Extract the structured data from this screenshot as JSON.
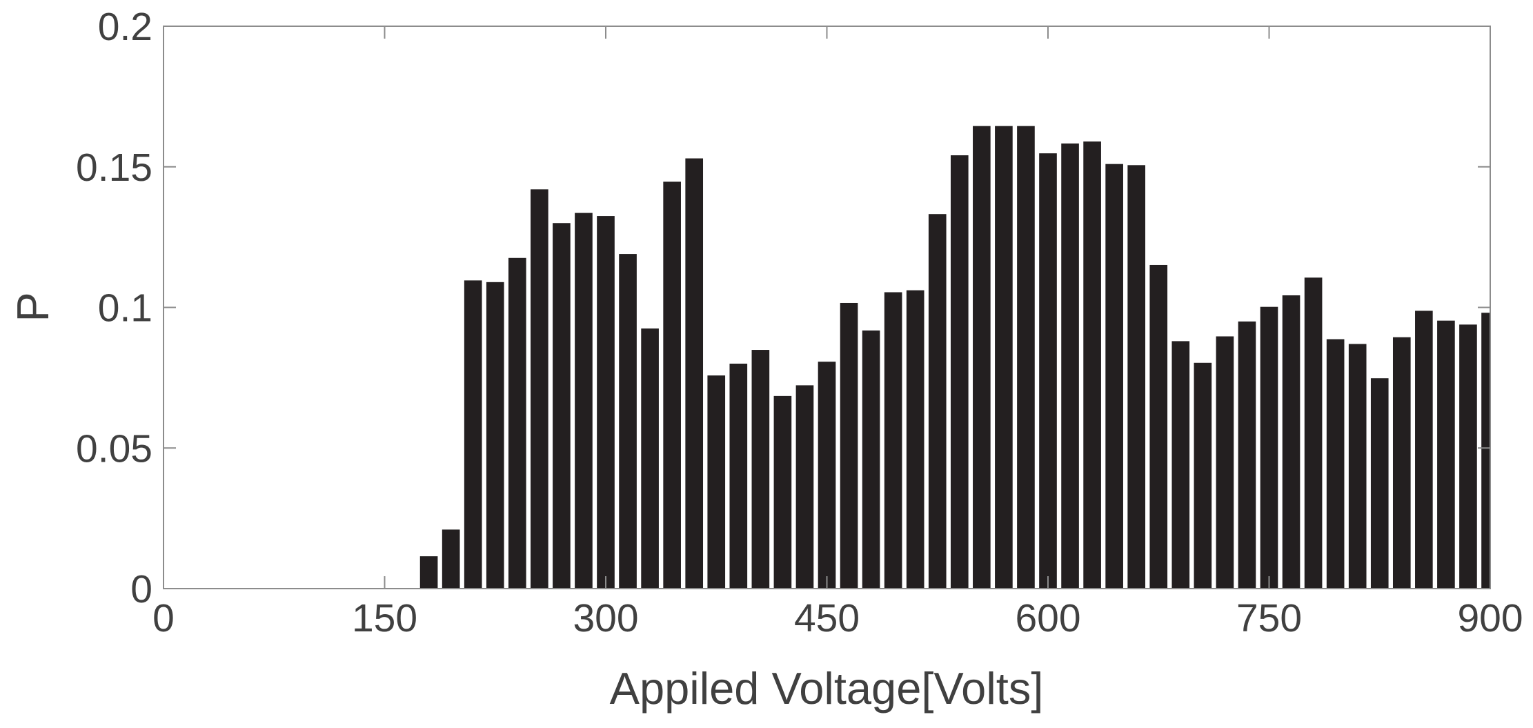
{
  "chart_data": {
    "type": "bar",
    "x_label": "Appiled Voltage[Volts]",
    "y_label": "P",
    "x": [
      180,
      195,
      210,
      225,
      240,
      255,
      270,
      285,
      300,
      315,
      330,
      345,
      360,
      375,
      390,
      405,
      420,
      435,
      450,
      465,
      480,
      495,
      510,
      525,
      540,
      555,
      570,
      585,
      600,
      615,
      630,
      645,
      660,
      675,
      690,
      705,
      720,
      735,
      750,
      765,
      780,
      795,
      810,
      825,
      840,
      855,
      870,
      885,
      900
    ],
    "values": [
      0.0115,
      0.021,
      0.1096,
      0.109,
      0.1176,
      0.142,
      0.13,
      0.1336,
      0.1325,
      0.119,
      0.0925,
      0.1447,
      0.153,
      0.0758,
      0.08,
      0.0849,
      0.0685,
      0.0723,
      0.0807,
      0.1016,
      0.0918,
      0.1054,
      0.1061,
      0.1332,
      0.1541,
      0.1645,
      0.1645,
      0.1645,
      0.1548,
      0.1583,
      0.159,
      0.151,
      0.1506,
      0.1151,
      0.088,
      0.0803,
      0.0897,
      0.095,
      0.1002,
      0.1043,
      0.1106,
      0.0887,
      0.087,
      0.0748,
      0.0894,
      0.0988,
      0.0953,
      0.0939,
      0.0981
    ],
    "color": "#231f20",
    "xlim": [
      0,
      900
    ],
    "xticks": [
      0,
      150,
      300,
      450,
      600,
      750,
      900
    ],
    "ylim": [
      0,
      0.2
    ],
    "yticks": [
      0,
      0.05,
      0.1,
      0.15,
      0.2
    ],
    "grid": false
  }
}
